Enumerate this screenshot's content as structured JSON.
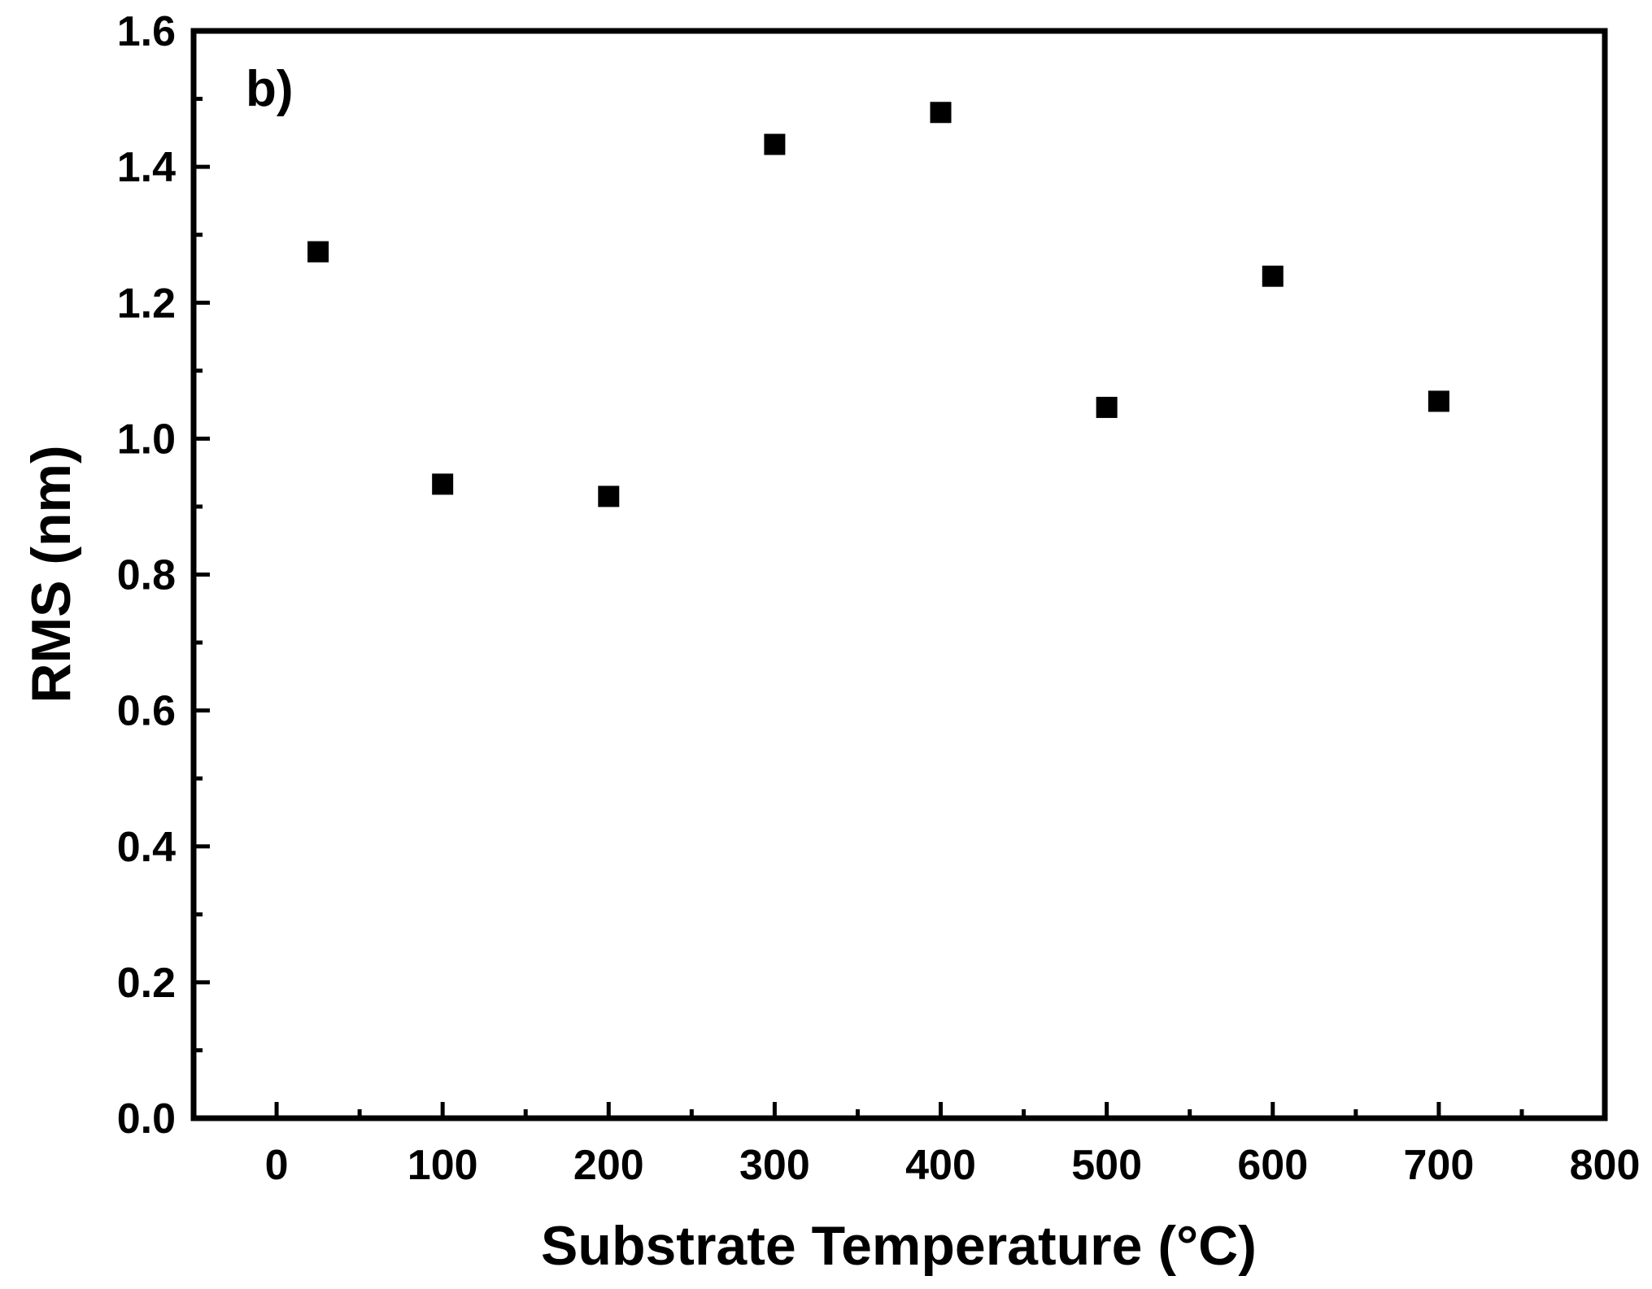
{
  "chart_data": {
    "type": "scatter",
    "panel_label": "b)",
    "xlabel": "Substrate Temperature (°C)",
    "ylabel": "RMS (nm)",
    "xlim": [
      -50,
      800
    ],
    "ylim": [
      0.0,
      1.6
    ],
    "x_ticks": [
      0,
      100,
      200,
      300,
      400,
      500,
      600,
      700,
      800
    ],
    "x_tick_labels": [
      "0",
      "100",
      "200",
      "300",
      "400",
      "500",
      "600",
      "700",
      "800"
    ],
    "x_minor_ticks": [
      50,
      150,
      250,
      350,
      450,
      550,
      650,
      750
    ],
    "y_ticks": [
      0.0,
      0.2,
      0.4,
      0.6,
      0.8,
      1.0,
      1.2,
      1.4,
      1.6
    ],
    "y_tick_labels": [
      "0.0",
      "0.2",
      "0.4",
      "0.6",
      "0.8",
      "1.0",
      "1.2",
      "1.4",
      "1.6"
    ],
    "y_minor_ticks": [
      0.1,
      0.3,
      0.5,
      0.7,
      0.9,
      1.1,
      1.3,
      1.5
    ],
    "grid": false,
    "marker": "square",
    "marker_color": "#000000",
    "series": [
      {
        "x": [
          25,
          100,
          200,
          300,
          400,
          500,
          600,
          700
        ],
        "y": [
          1.275,
          0.933,
          0.915,
          1.433,
          1.48,
          1.046,
          1.239,
          1.055
        ]
      }
    ]
  }
}
